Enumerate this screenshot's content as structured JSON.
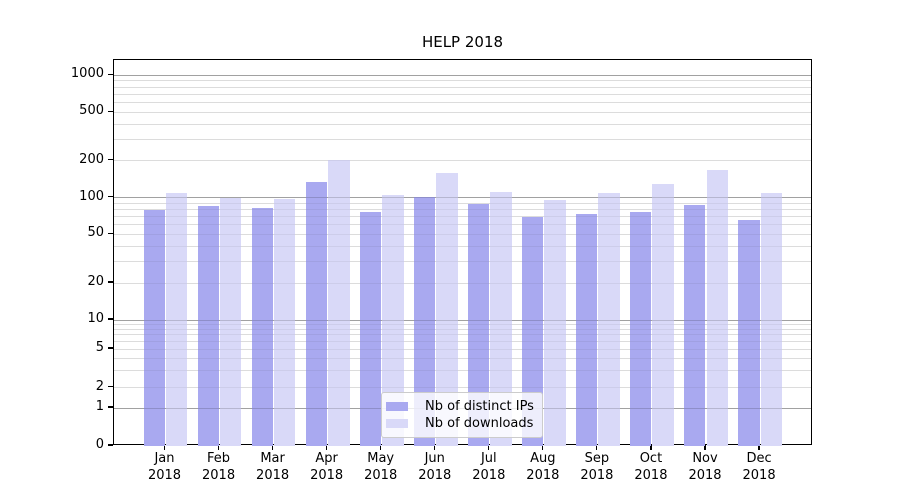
{
  "title": "HELP 2018",
  "chart_data": {
    "type": "bar",
    "title": "HELP 2018",
    "categories": [
      "Jan",
      "Feb",
      "Mar",
      "Apr",
      "May",
      "Jun",
      "Jul",
      "Aug",
      "Sep",
      "Oct",
      "Nov",
      "Dec"
    ],
    "year": "2018",
    "series": [
      {
        "name": "Nb of distinct IPs",
        "color": "#a9a9f0",
        "values": [
          80,
          85,
          82,
          135,
          76,
          102,
          89,
          70,
          73,
          76,
          87,
          66
        ]
      },
      {
        "name": "Nb of downloads",
        "color": "#d9d9f8",
        "values": [
          110,
          100,
          98,
          205,
          105,
          160,
          112,
          95,
          110,
          130,
          170,
          110
        ]
      }
    ],
    "yscale": "symlog",
    "ytick_labels": [
      "1000",
      "500",
      "200",
      "100",
      "50",
      "20",
      "10",
      "5",
      "2",
      "1",
      "0"
    ],
    "ytick_values": [
      1000,
      500,
      200,
      100,
      50,
      20,
      10,
      5,
      2,
      1,
      0
    ],
    "ylim": [
      0,
      1300
    ],
    "grid": true,
    "legend_position": "lower center"
  },
  "colors": {
    "major_grid": "#c0c0c0",
    "minor_grid": "#e9e9e9",
    "spine": "#000000",
    "legend_border": "#cccccc",
    "background": "#ffffff"
  }
}
